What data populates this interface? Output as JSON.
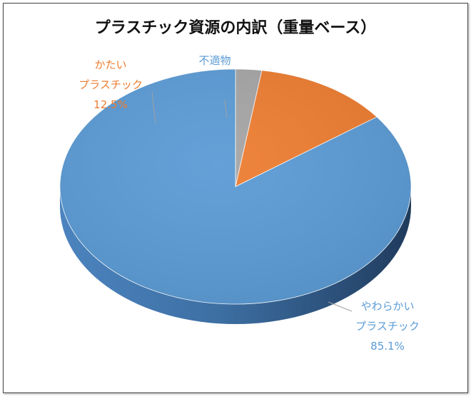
{
  "chart_data": {
    "type": "pie",
    "title": "プラスチック資源の内訳（重量ベース）",
    "slices": [
      {
        "label_lines": [
          "やわらかい",
          "プラスチック"
        ],
        "percent_label": "85.1%",
        "value": 85.1,
        "color": "#5b9bd5"
      },
      {
        "label_lines": [
          "かたい",
          "プラスチック"
        ],
        "percent_label": "12.5%",
        "value": 12.5,
        "color": "#ed7d31"
      },
      {
        "label_lines": [
          "不適物"
        ],
        "percent_label": "2.4%",
        "value": 2.4,
        "color": "#a5a5a5"
      }
    ],
    "style": "3d",
    "legend": "none"
  }
}
